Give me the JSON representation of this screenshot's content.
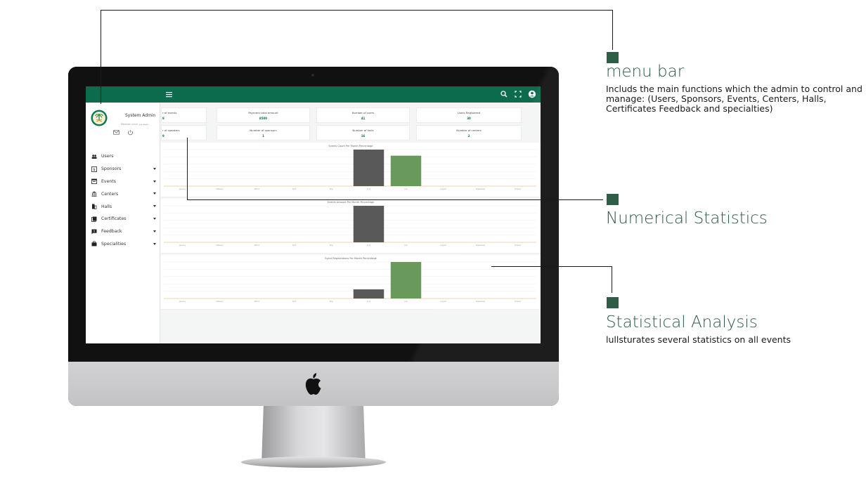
{
  "app": {
    "admin_name": "System Admin",
    "admin_subtitle": "Member since دقيقة قبل",
    "menu": [
      {
        "label": "Users",
        "icon": "users-icon",
        "has_submenu": false
      },
      {
        "label": "Sponsors",
        "icon": "dollar-icon",
        "has_submenu": true
      },
      {
        "label": "Events",
        "icon": "calendar-icon",
        "has_submenu": true
      },
      {
        "label": "Centers",
        "icon": "bank-icon",
        "has_submenu": true
      },
      {
        "label": "Halls",
        "icon": "building-icon",
        "has_submenu": true
      },
      {
        "label": "Certificates",
        "icon": "certificate-icon",
        "has_submenu": true
      },
      {
        "label": "Feedback",
        "icon": "feedback-icon",
        "has_submenu": true
      },
      {
        "label": "Specialities",
        "icon": "briefcase-icon",
        "has_submenu": true
      }
    ],
    "stats": [
      {
        "label": "r of events",
        "value": "9"
      },
      {
        "label": "Payment total amount",
        "value": "8500"
      },
      {
        "label": "Number of users",
        "value": "41"
      },
      {
        "label": "Users Registered",
        "value": "30"
      },
      {
        "label": "r of speakers",
        "value": "9"
      },
      {
        "label": "Number of sponsors",
        "value": "1"
      },
      {
        "label": "Number of halls",
        "value": "16"
      },
      {
        "label": "Number of centers",
        "value": "2"
      }
    ],
    "colors": {
      "primary": "#0c6a4d",
      "bar_dark": "#595959",
      "bar_green": "#6a9a5b"
    }
  },
  "chart_data": [
    {
      "type": "bar",
      "title": "Events Count Per Month Percentage",
      "categories": [
        "January",
        "February",
        "March",
        "April",
        "May",
        "June",
        "July",
        "August",
        "September",
        "October"
      ],
      "series": [
        {
          "values": [
            0,
            0,
            0,
            0,
            0,
            3,
            0,
            0,
            0,
            0
          ]
        },
        {
          "values": [
            0,
            0,
            0,
            0,
            0,
            0,
            2.5,
            0,
            0,
            0
          ]
        }
      ]
    },
    {
      "type": "bar",
      "title": "Events Amount Per Month Percentage",
      "categories": [
        "January",
        "February",
        "March",
        "April",
        "May",
        "June",
        "July",
        "August",
        "September",
        "October"
      ],
      "series": [
        {
          "values": [
            0,
            0,
            0,
            0,
            0,
            8500,
            0,
            0,
            0,
            0
          ]
        },
        {
          "values": [
            0,
            0,
            0,
            0,
            0,
            0,
            0,
            0,
            0,
            0
          ]
        }
      ]
    },
    {
      "type": "bar",
      "title": "Event Registrations Per Month Percentage",
      "categories": [
        "January",
        "February",
        "March",
        "April",
        "May",
        "June",
        "July",
        "August",
        "September",
        "October"
      ],
      "series": [
        {
          "values": [
            0,
            0,
            0,
            0,
            0,
            6,
            0,
            0,
            0,
            0
          ]
        },
        {
          "values": [
            0,
            0,
            0,
            0,
            0,
            0,
            24,
            0,
            0,
            0
          ]
        }
      ]
    }
  ],
  "callouts": {
    "menu_bar": {
      "title": "menu bar",
      "desc": "Includs the main functions which the admin to control and manage: (Users, Sponsors, Events, Centers, Halls, Certificates Feedback and specialties)"
    },
    "numerical": {
      "title": "Numerical Statistics"
    },
    "statistical": {
      "title": "Statistical Analysis",
      "desc": "lullsturates several statistics on all events"
    }
  }
}
